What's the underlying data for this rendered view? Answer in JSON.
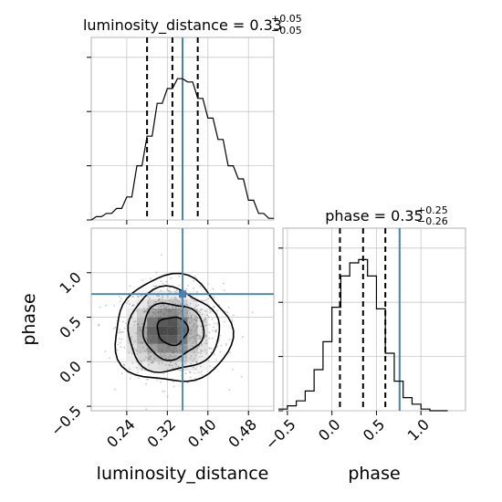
{
  "chart_data": [
    {
      "type": "histogram",
      "panel": "top-left",
      "title": {
        "name": "luminosity_distance",
        "eq": " = ",
        "value": "0.33",
        "plus": "+0.05",
        "minus": "−0.05"
      },
      "x": [
        0.17,
        0.18,
        0.19,
        0.2,
        0.21,
        0.22,
        0.23,
        0.24,
        0.25,
        0.26,
        0.27,
        0.28,
        0.29,
        0.3,
        0.31,
        0.32,
        0.33,
        0.34,
        0.35,
        0.36,
        0.37,
        0.38,
        0.39,
        0.4,
        0.41,
        0.42,
        0.43,
        0.44,
        0.45,
        0.46,
        0.47,
        0.48,
        0.49,
        0.5,
        0.51,
        0.52,
        0.53
      ],
      "y": [
        0,
        0.02,
        0.02,
        0.04,
        0.04,
        0.07,
        0.07,
        0.14,
        0.14,
        0.33,
        0.33,
        0.51,
        0.51,
        0.71,
        0.71,
        0.8,
        0.8,
        0.86,
        0.86,
        0.84,
        0.84,
        0.74,
        0.74,
        0.62,
        0.62,
        0.49,
        0.49,
        0.33,
        0.33,
        0.25,
        0.25,
        0.12,
        0.12,
        0.04,
        0.04,
        0.01,
        0.01
      ],
      "xlim": [
        0.17,
        0.53
      ],
      "ylim": [
        0,
        1
      ],
      "quantiles": [
        0.28,
        0.33,
        0.38
      ],
      "truth": 0.35,
      "grid": true,
      "show_y_ticklabels": false
    },
    {
      "type": "scatter",
      "panel": "bottom-left",
      "description": "2D density: contours and shaded histogram",
      "xlim": [
        0.17,
        0.53
      ],
      "ylim": [
        -0.55,
        1.5
      ],
      "xticks": [
        0.24,
        0.32,
        0.4,
        0.48
      ],
      "xtick_labels": [
        "0.24",
        "0.32",
        "0.40",
        "0.48"
      ],
      "yticks": [
        -0.5,
        0.0,
        0.5,
        1.0
      ],
      "ytick_labels": [
        "−0.5",
        "0.0",
        "0.5",
        "1.0"
      ],
      "xlabel": "luminosity_distance",
      "ylabel": "phase",
      "truth_x": 0.35,
      "truth_y": 0.76,
      "grid": true,
      "center": [
        0.33,
        0.35
      ],
      "sigma": [
        0.05,
        0.26
      ],
      "contours": [
        {
          "level": 0.5,
          "scale": 0.6
        },
        {
          "level": 1.0,
          "scale": 1.2
        },
        {
          "level": 1.5,
          "scale": 1.8
        },
        {
          "level": 2.0,
          "scale": 2.3
        }
      ],
      "density_grid": {
        "x_edges": [
          0.24,
          0.26,
          0.28,
          0.3,
          0.32,
          0.34,
          0.36,
          0.38,
          0.4
        ],
        "y_edges": [
          -0.1,
          0.0,
          0.1,
          0.2,
          0.3,
          0.4,
          0.5,
          0.6,
          0.7,
          0.8
        ],
        "counts": [
          [
            0.05,
            0.1,
            0.15,
            0.18,
            0.18,
            0.15,
            0.1,
            0.05
          ],
          [
            0.1,
            0.2,
            0.3,
            0.35,
            0.35,
            0.3,
            0.2,
            0.1
          ],
          [
            0.15,
            0.3,
            0.5,
            0.6,
            0.6,
            0.5,
            0.3,
            0.15
          ],
          [
            0.2,
            0.4,
            0.75,
            0.85,
            0.85,
            0.7,
            0.35,
            0.15
          ],
          [
            0.2,
            0.45,
            0.8,
            0.95,
            0.95,
            0.75,
            0.4,
            0.15
          ],
          [
            0.15,
            0.35,
            0.7,
            0.85,
            0.9,
            0.7,
            0.35,
            0.15
          ],
          [
            0.1,
            0.25,
            0.45,
            0.55,
            0.6,
            0.45,
            0.25,
            0.1
          ],
          [
            0.05,
            0.12,
            0.25,
            0.3,
            0.3,
            0.25,
            0.12,
            0.05
          ],
          [
            0.02,
            0.05,
            0.1,
            0.12,
            0.12,
            0.1,
            0.05,
            0.02
          ]
        ]
      }
    },
    {
      "type": "histogram",
      "panel": "bottom-right",
      "title": {
        "name": "phase",
        "eq": " = ",
        "value": "0.35",
        "plus": "+0.25",
        "minus": "−0.26"
      },
      "x": [
        -0.55,
        -0.45,
        -0.35,
        -0.25,
        -0.15,
        -0.05,
        0.05,
        0.15,
        0.25,
        0.35,
        0.45,
        0.55,
        0.65,
        0.75,
        0.85,
        0.95,
        1.05,
        1.15,
        1.25
      ],
      "y": [
        0.01,
        0.03,
        0.06,
        0.12,
        0.25,
        0.42,
        0.63,
        0.82,
        0.9,
        0.92,
        0.82,
        0.62,
        0.35,
        0.18,
        0.08,
        0.04,
        0.01,
        0.0,
        0.0
      ],
      "xlim": [
        -0.55,
        1.5
      ],
      "ylim": [
        0,
        1
      ],
      "xticks": [
        -0.5,
        0.0,
        0.5,
        1.0
      ],
      "xtick_labels": [
        "−0.5",
        "0.0",
        "0.5",
        "1.0"
      ],
      "xlabel": "phase",
      "quantiles": [
        0.09,
        0.35,
        0.6
      ],
      "truth": 0.76,
      "grid": true,
      "show_y_ticklabels": false
    }
  ],
  "colors": {
    "line": "#000000",
    "truth": "#4682b4",
    "grid": "#c8c8c8",
    "frame": "#b0b0b0",
    "scatter": "#606060"
  }
}
